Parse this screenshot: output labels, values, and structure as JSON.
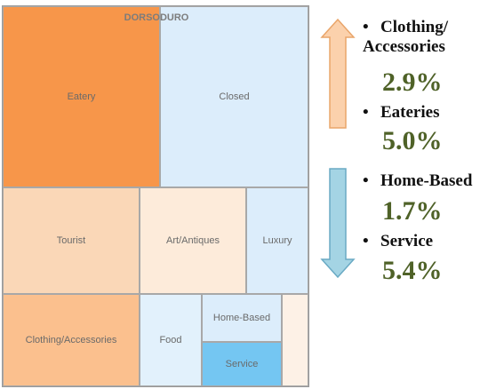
{
  "chart_data": {
    "type": "treemap",
    "title": "DORSODURO",
    "tiles": [
      {
        "label": "Eatery",
        "color": "#f7964a"
      },
      {
        "label": "Closed",
        "color": "#dcedfb"
      },
      {
        "label": "Tourist",
        "color": "#fad7b7"
      },
      {
        "label": "Art/Antiques",
        "color": "#fdebda"
      },
      {
        "label": "Luxury",
        "color": "#dcedfb"
      },
      {
        "label": "Clothing/Accessories",
        "color": "#fbc08e"
      },
      {
        "label": "Food",
        "color": "#e2f1fc"
      },
      {
        "label": "Home-Based",
        "color": "#dcedfb"
      },
      {
        "label": "Service",
        "color": "#74c6f2"
      },
      {
        "label": "",
        "color": "#fdf1e6"
      }
    ]
  },
  "callouts": {
    "increases": [
      {
        "label": "Clothing/ Accessories",
        "lines": [
          "Clothing/",
          "Accessories"
        ],
        "value": "2.9%"
      },
      {
        "label": "Eateries",
        "lines": [
          "Eateries"
        ],
        "value": "5.0%"
      }
    ],
    "decreases": [
      {
        "label": "Home-Based",
        "lines": [
          "Home-Based"
        ],
        "value": "1.7%"
      },
      {
        "label": "Service",
        "lines": [
          "Service"
        ],
        "value": "5.4%"
      }
    ],
    "bullet": "•",
    "colors": {
      "up_arrow_fill": "#fbd1ac",
      "up_arrow_stroke": "#e9a56a",
      "down_arrow_fill": "#a4d4e4",
      "down_arrow_stroke": "#6aaac4",
      "value_text": "#4f6228"
    }
  }
}
